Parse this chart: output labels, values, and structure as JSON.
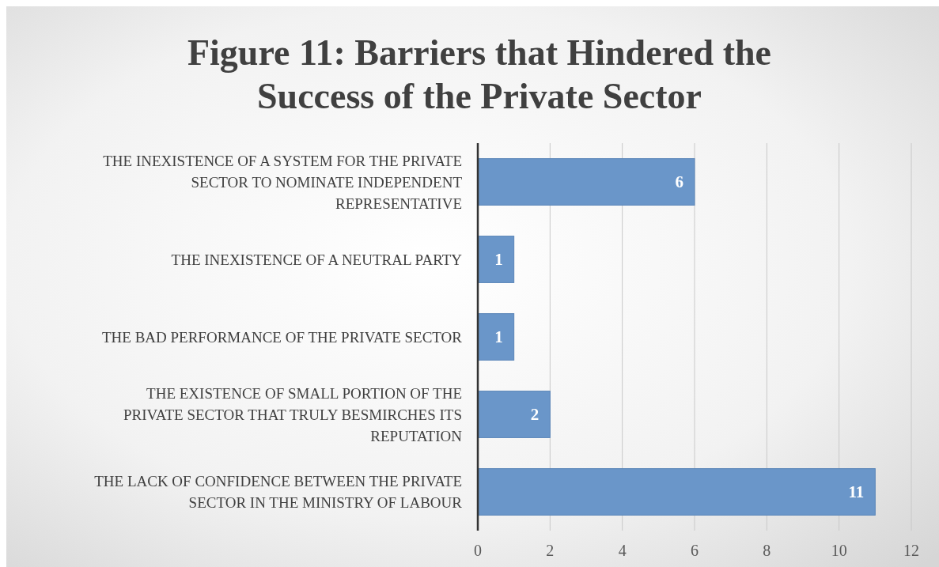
{
  "chart_data": {
    "type": "bar",
    "orientation": "horizontal",
    "title": "Figure 11: Barriers that Hindered the Success of the Private Sector",
    "categories": [
      "THE INEXISTENCE OF A SYSTEM FOR THE PRIVATE SECTOR TO NOMINATE INDEPENDENT REPRESENTATIVE",
      "THE INEXISTENCE OF A NEUTRAL PARTY",
      "THE BAD PERFORMANCE OF THE PRIVATE SECTOR",
      "THE EXISTENCE OF SMALL PORTION OF THE PRIVATE SECTOR THAT TRULY BESMIRCHES ITS REPUTATION",
      "THE LACK OF CONFIDENCE BETWEEN THE PRIVATE SECTOR IN THE MINISTRY OF LABOUR"
    ],
    "values": [
      6,
      1,
      1,
      2,
      11
    ],
    "color": "#6a96c9",
    "xlim": [
      0,
      12
    ],
    "xticks": [
      0,
      2,
      4,
      6,
      8,
      10,
      12
    ],
    "grid": "x",
    "data_labels": true
  }
}
